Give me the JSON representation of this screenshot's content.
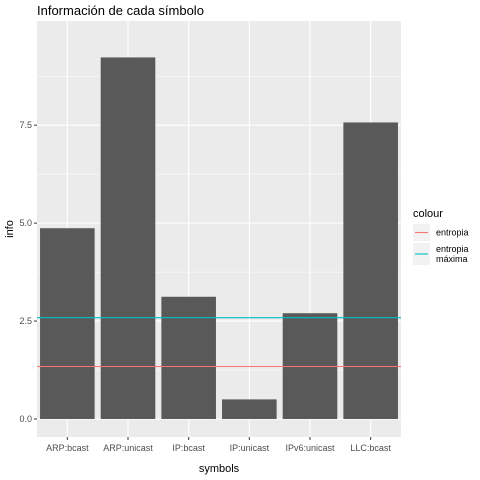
{
  "chart_data": {
    "type": "bar",
    "title": "Información de cada símbolo",
    "xlabel": "symbols",
    "ylabel": "info",
    "categories": [
      "ARP:bcast",
      "ARP:unicast",
      "IP:bcast",
      "IP:unicast",
      "IPv6:unicast",
      "LLC:bcast"
    ],
    "values": [
      4.87,
      9.23,
      3.12,
      0.5,
      2.7,
      7.57
    ],
    "ylim": [
      -0.46,
      10.16
    ],
    "yticks": [
      0.0,
      2.5,
      5.0,
      7.5
    ],
    "ytick_labels": [
      "0.0",
      "2.5",
      "5.0",
      "7.5"
    ],
    "bar_color": "#595959",
    "panel_color": "#ebebeb",
    "grid": true,
    "hlines": [
      {
        "name": "entropia",
        "value": 1.34,
        "color": "#f8766d"
      },
      {
        "name": "entropia máxima",
        "value": 2.585,
        "color": "#00bfc4"
      }
    ],
    "legend": {
      "title": "colour",
      "placement": "right",
      "entries": [
        {
          "lines": [
            "entropia"
          ],
          "color": "#f8766d"
        },
        {
          "lines": [
            "entropia",
            "máxima"
          ],
          "color": "#00bfc4"
        }
      ]
    }
  }
}
